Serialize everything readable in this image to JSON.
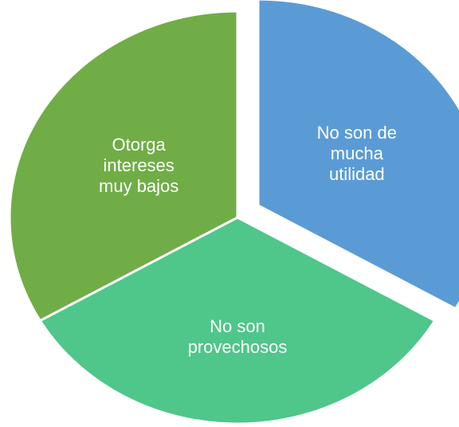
{
  "chart_data": {
    "type": "pie",
    "categories": [
      "No son de mucha utilidad",
      "No son provechosos",
      "Otorga intereses muy bajos"
    ],
    "values": [
      33.3,
      33.3,
      33.3
    ],
    "colors": [
      "#5b9bd5",
      "#4fc68a",
      "#70ad47"
    ],
    "exploded": [
      true,
      false,
      false
    ]
  }
}
